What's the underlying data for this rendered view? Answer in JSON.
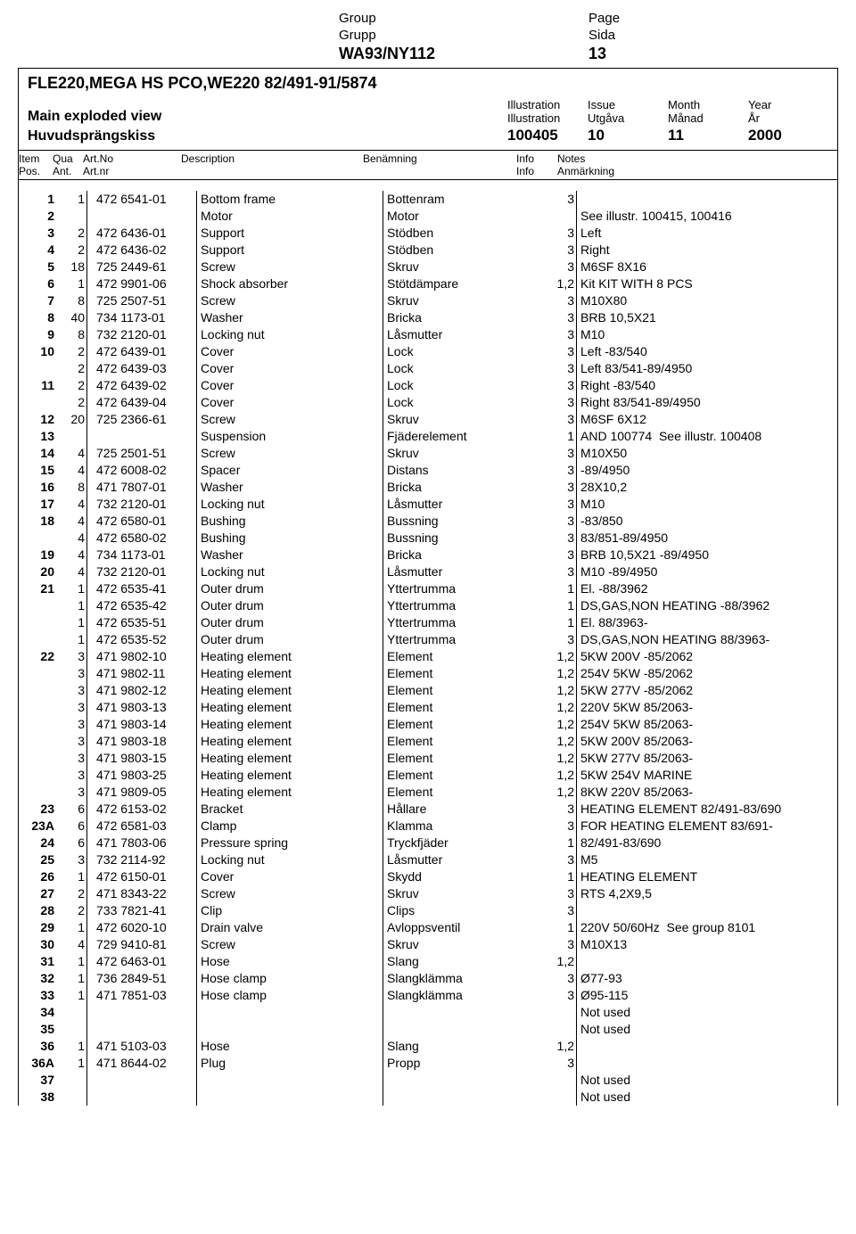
{
  "top": {
    "labels": {
      "group_en": "Group",
      "group_sv": "Grupp",
      "page_en": "Page",
      "page_sv": "Sida"
    },
    "group_value": "WA93/NY112",
    "page_value": "13"
  },
  "header": {
    "product_line": "FLE220,MEGA HS PCO,WE220 82/491-91/5874",
    "main_title_en": "Main exploded view",
    "main_title_sv": "Huvudsprängskiss",
    "illus_labels": {
      "illustration_en": "Illustration",
      "illustration_sv": "Illustration",
      "issue_en": "Issue",
      "issue_sv": "Utgåva",
      "month_en": "Month",
      "month_sv": "Månad",
      "year_en": "Year",
      "year_sv": "År"
    },
    "illus_values": {
      "illustration": "100405",
      "issue": "10",
      "month": "11",
      "year": "2000"
    }
  },
  "colhdr": {
    "item_en": "Item",
    "item_sv": "Pos.",
    "qua_en": "Qua",
    "qua_sv": "Ant.",
    "artno_en": "Art.No",
    "artno_sv": "Art.nr",
    "desc": "Description",
    "ben": "Benämning",
    "info_en": "Info",
    "info_sv": "Info",
    "notes_en": "Notes",
    "notes_sv": "Anmärkning"
  },
  "rows": [
    {
      "item": "1",
      "qua": "1",
      "artno": "472 6541-01",
      "desc": "Bottom frame",
      "ben": "Bottenram",
      "info": "3",
      "notes": ""
    },
    {
      "item": "2",
      "qua": "",
      "artno": "",
      "desc": "Motor",
      "ben": "Motor",
      "info": "",
      "notes": "See illustr. 100415, 100416"
    },
    {
      "item": "3",
      "qua": "2",
      "artno": "472 6436-01",
      "desc": "Support",
      "ben": "Stödben",
      "info": "3",
      "notes": "Left"
    },
    {
      "item": "4",
      "qua": "2",
      "artno": "472 6436-02",
      "desc": "Support",
      "ben": "Stödben",
      "info": "3",
      "notes": "Right"
    },
    {
      "item": "5",
      "qua": "18",
      "artno": "725 2449-61",
      "desc": "Screw",
      "ben": "Skruv",
      "info": "3",
      "notes": "M6SF 8X16"
    },
    {
      "item": "6",
      "qua": "1",
      "artno": "472 9901-06",
      "desc": "Shock absorber",
      "ben": "Stötdämpare",
      "info": "1,2",
      "notes": "Kit KIT WITH 8 PCS"
    },
    {
      "item": "7",
      "qua": "8",
      "artno": "725 2507-51",
      "desc": "Screw",
      "ben": "Skruv",
      "info": "3",
      "notes": "M10X80"
    },
    {
      "item": "8",
      "qua": "40",
      "artno": "734 1173-01",
      "desc": "Washer",
      "ben": "Bricka",
      "info": "3",
      "notes": "BRB 10,5X21"
    },
    {
      "item": "9",
      "qua": "8",
      "artno": "732 2120-01",
      "desc": "Locking nut",
      "ben": "Låsmutter",
      "info": "3",
      "notes": "M10"
    },
    {
      "item": "10",
      "qua": "2",
      "artno": "472 6439-01",
      "desc": "Cover",
      "ben": "Lock",
      "info": "3",
      "notes": "Left -83/540"
    },
    {
      "item": "",
      "qua": "2",
      "artno": "472 6439-03",
      "desc": "Cover",
      "ben": "Lock",
      "info": "3",
      "notes": "Left 83/541-89/4950"
    },
    {
      "item": "11",
      "qua": "2",
      "artno": "472 6439-02",
      "desc": "Cover",
      "ben": "Lock",
      "info": "3",
      "notes": "Right -83/540"
    },
    {
      "item": "",
      "qua": "2",
      "artno": "472 6439-04",
      "desc": "Cover",
      "ben": "Lock",
      "info": "3",
      "notes": "Right 83/541-89/4950"
    },
    {
      "item": "12",
      "qua": "20",
      "artno": "725 2366-61",
      "desc": "Screw",
      "ben": "Skruv",
      "info": "3",
      "notes": "M6SF 6X12"
    },
    {
      "item": "13",
      "qua": "",
      "artno": "",
      "desc": "Suspension",
      "ben": "Fjäderelement",
      "info": "1",
      "notes": "AND 100774  See illustr. 100408"
    },
    {
      "item": "14",
      "qua": "4",
      "artno": "725 2501-51",
      "desc": "Screw",
      "ben": "Skruv",
      "info": "3",
      "notes": "M10X50"
    },
    {
      "item": "15",
      "qua": "4",
      "artno": "472 6008-02",
      "desc": "Spacer",
      "ben": "Distans",
      "info": "3",
      "notes": "-89/4950"
    },
    {
      "item": "16",
      "qua": "8",
      "artno": "471 7807-01",
      "desc": "Washer",
      "ben": "Bricka",
      "info": "3",
      "notes": "28X10,2"
    },
    {
      "item": "17",
      "qua": "4",
      "artno": "732 2120-01",
      "desc": "Locking nut",
      "ben": "Låsmutter",
      "info": "3",
      "notes": "M10"
    },
    {
      "item": "18",
      "qua": "4",
      "artno": "472 6580-01",
      "desc": "Bushing",
      "ben": "Bussning",
      "info": "3",
      "notes": "-83/850"
    },
    {
      "item": "",
      "qua": "4",
      "artno": "472 6580-02",
      "desc": "Bushing",
      "ben": "Bussning",
      "info": "3",
      "notes": "83/851-89/4950"
    },
    {
      "item": "19",
      "qua": "4",
      "artno": "734 1173-01",
      "desc": "Washer",
      "ben": "Bricka",
      "info": "3",
      "notes": "BRB 10,5X21 -89/4950"
    },
    {
      "item": "20",
      "qua": "4",
      "artno": "732 2120-01",
      "desc": "Locking nut",
      "ben": "Låsmutter",
      "info": "3",
      "notes": "M10 -89/4950"
    },
    {
      "item": "21",
      "qua": "1",
      "artno": "472 6535-41",
      "desc": "Outer drum",
      "ben": "Yttertrumma",
      "info": "1",
      "notes": "El. -88/3962"
    },
    {
      "item": "",
      "qua": "1",
      "artno": "472 6535-42",
      "desc": "Outer drum",
      "ben": "Yttertrumma",
      "info": "1",
      "notes": "DS,GAS,NON HEATING -88/3962"
    },
    {
      "item": "",
      "qua": "1",
      "artno": "472 6535-51",
      "desc": "Outer drum",
      "ben": "Yttertrumma",
      "info": "1",
      "notes": "El. 88/3963-"
    },
    {
      "item": "",
      "qua": "1",
      "artno": "472 6535-52",
      "desc": "Outer drum",
      "ben": "Yttertrumma",
      "info": "3",
      "notes": "DS,GAS,NON HEATING 88/3963-"
    },
    {
      "item": "22",
      "qua": "3",
      "artno": "471 9802-10",
      "desc": "Heating element",
      "ben": "Element",
      "info": "1,2",
      "notes": "5KW 200V -85/2062"
    },
    {
      "item": "",
      "qua": "3",
      "artno": "471 9802-11",
      "desc": "Heating element",
      "ben": "Element",
      "info": "1,2",
      "notes": "254V 5KW -85/2062"
    },
    {
      "item": "",
      "qua": "3",
      "artno": "471 9802-12",
      "desc": "Heating element",
      "ben": "Element",
      "info": "1,2",
      "notes": "5KW 277V -85/2062"
    },
    {
      "item": "",
      "qua": "3",
      "artno": "471 9803-13",
      "desc": "Heating element",
      "ben": "Element",
      "info": "1,2",
      "notes": "220V 5KW 85/2063-"
    },
    {
      "item": "",
      "qua": "3",
      "artno": "471 9803-14",
      "desc": "Heating element",
      "ben": "Element",
      "info": "1,2",
      "notes": "254V 5KW 85/2063-"
    },
    {
      "item": "",
      "qua": "3",
      "artno": "471 9803-18",
      "desc": "Heating element",
      "ben": "Element",
      "info": "1,2",
      "notes": "5KW 200V 85/2063-"
    },
    {
      "item": "",
      "qua": "3",
      "artno": "471 9803-15",
      "desc": "Heating element",
      "ben": "Element",
      "info": "1,2",
      "notes": "5KW 277V 85/2063-"
    },
    {
      "item": "",
      "qua": "3",
      "artno": "471 9803-25",
      "desc": "Heating element",
      "ben": "Element",
      "info": "1,2",
      "notes": "5KW 254V MARINE"
    },
    {
      "item": "",
      "qua": "3",
      "artno": "471 9809-05",
      "desc": "Heating element",
      "ben": "Element",
      "info": "1,2",
      "notes": "8KW 220V 85/2063-"
    },
    {
      "item": "23",
      "qua": "6",
      "artno": "472 6153-02",
      "desc": "Bracket",
      "ben": "Hållare",
      "info": "3",
      "notes": "HEATING ELEMENT 82/491-83/690"
    },
    {
      "item": "23A",
      "qua": "6",
      "artno": "472 6581-03",
      "desc": "Clamp",
      "ben": "Klamma",
      "info": "3",
      "notes": "FOR HEATING ELEMENT 83/691-"
    },
    {
      "item": "24",
      "qua": "6",
      "artno": "471 7803-06",
      "desc": "Pressure spring",
      "ben": "Tryckfjäder",
      "info": "1",
      "notes": "82/491-83/690"
    },
    {
      "item": "25",
      "qua": "3",
      "artno": "732 2114-92",
      "desc": "Locking nut",
      "ben": "Låsmutter",
      "info": "3",
      "notes": "M5"
    },
    {
      "item": "26",
      "qua": "1",
      "artno": "472 6150-01",
      "desc": "Cover",
      "ben": "Skydd",
      "info": "1",
      "notes": "HEATING ELEMENT"
    },
    {
      "item": "27",
      "qua": "2",
      "artno": "471 8343-22",
      "desc": "Screw",
      "ben": "Skruv",
      "info": "3",
      "notes": "RTS 4,2X9,5"
    },
    {
      "item": "28",
      "qua": "2",
      "artno": "733 7821-41",
      "desc": "Clip",
      "ben": "Clips",
      "info": "3",
      "notes": ""
    },
    {
      "item": "29",
      "qua": "1",
      "artno": "472 6020-10",
      "desc": "Drain valve",
      "ben": "Avloppsventil",
      "info": "1",
      "notes": "220V 50/60Hz  See group 8101"
    },
    {
      "item": "30",
      "qua": "4",
      "artno": "729 9410-81",
      "desc": "Screw",
      "ben": "Skruv",
      "info": "3",
      "notes": "M10X13"
    },
    {
      "item": "31",
      "qua": "1",
      "artno": "472 6463-01",
      "desc": "Hose",
      "ben": "Slang",
      "info": "1,2",
      "notes": ""
    },
    {
      "item": "32",
      "qua": "1",
      "artno": "736 2849-51",
      "desc": "Hose clamp",
      "ben": "Slangklämma",
      "info": "3",
      "notes": "Ø77-93"
    },
    {
      "item": "33",
      "qua": "1",
      "artno": "471 7851-03",
      "desc": "Hose clamp",
      "ben": "Slangklämma",
      "info": "3",
      "notes": "Ø95-115"
    },
    {
      "item": "34",
      "qua": "",
      "artno": "",
      "desc": "",
      "ben": "",
      "info": "",
      "notes": "Not used"
    },
    {
      "item": "35",
      "qua": "",
      "artno": "",
      "desc": "",
      "ben": "",
      "info": "",
      "notes": "Not used"
    },
    {
      "item": "36",
      "qua": "1",
      "artno": "471 5103-03",
      "desc": "Hose",
      "ben": "Slang",
      "info": "1,2",
      "notes": ""
    },
    {
      "item": "36A",
      "qua": "1",
      "artno": "471 8644-02",
      "desc": "Plug",
      "ben": "Propp",
      "info": "3",
      "notes": ""
    },
    {
      "item": "37",
      "qua": "",
      "artno": "",
      "desc": "",
      "ben": "",
      "info": "",
      "notes": "Not used"
    },
    {
      "item": "38",
      "qua": "",
      "artno": "",
      "desc": "",
      "ben": "",
      "info": "",
      "notes": "Not used"
    }
  ]
}
